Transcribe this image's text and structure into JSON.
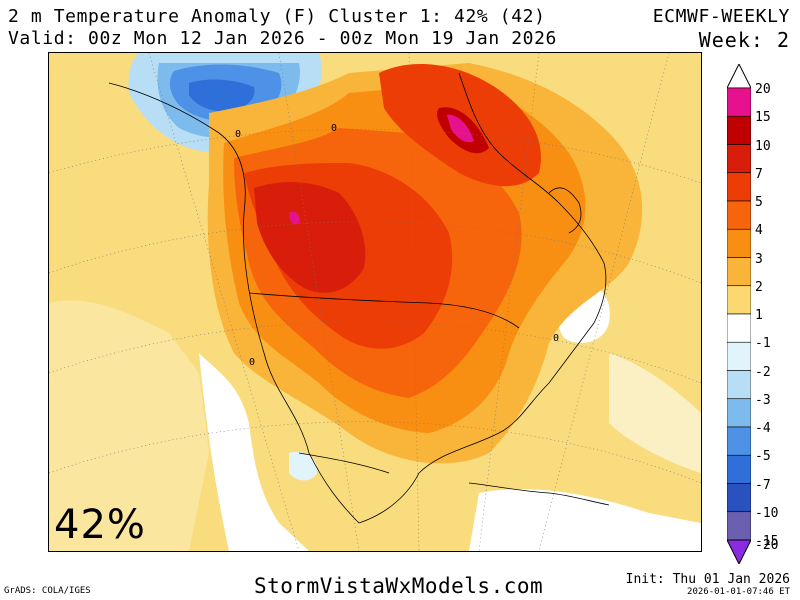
{
  "header": {
    "title": "2 m Temperature Anomaly (F) Cluster 1: 42% (42)",
    "valid": "Valid: 00z Mon 12 Jan 2026 - 00z Mon 19 Jan 2026",
    "model": "ECMWF-WEEKLY",
    "week": "Week: 2"
  },
  "map": {
    "cluster_percent_label": "42%",
    "contour_labels": [
      "0",
      "0",
      "0",
      "0"
    ]
  },
  "legend": {
    "levels": [
      {
        "label": "20",
        "color": "#e8118d"
      },
      {
        "label": "15",
        "color": "#c00000"
      },
      {
        "label": "10",
        "color": "#d81e0b"
      },
      {
        "label": "7",
        "color": "#ec3d07"
      },
      {
        "label": "5",
        "color": "#f6650c"
      },
      {
        "label": "4",
        "color": "#f88f12"
      },
      {
        "label": "3",
        "color": "#f9b43a"
      },
      {
        "label": "2",
        "color": "#fbd870"
      },
      {
        "label": "1",
        "color": "#ffffff"
      },
      {
        "label": "-1",
        "color": "#e2f4fb"
      },
      {
        "label": "-2",
        "color": "#b7def4"
      },
      {
        "label": "-3",
        "color": "#7ebbed"
      },
      {
        "label": "-4",
        "color": "#4d92e6"
      },
      {
        "label": "-5",
        "color": "#2f6fd9"
      },
      {
        "label": "-7",
        "color": "#2a52bf"
      },
      {
        "label": "-10",
        "color": "#6b5fb0"
      },
      {
        "label": "-15",
        "color": "#8a2be2"
      },
      {
        "label": "-20",
        "color": "#ffffff"
      }
    ]
  },
  "footer": {
    "credit": "GrADS: COLA/IGES",
    "site": "StormVistaWxModels.com",
    "init": "Init: Thu 01 Jan 2026",
    "timestamp": "2026-01-01-07:46 ET"
  }
}
